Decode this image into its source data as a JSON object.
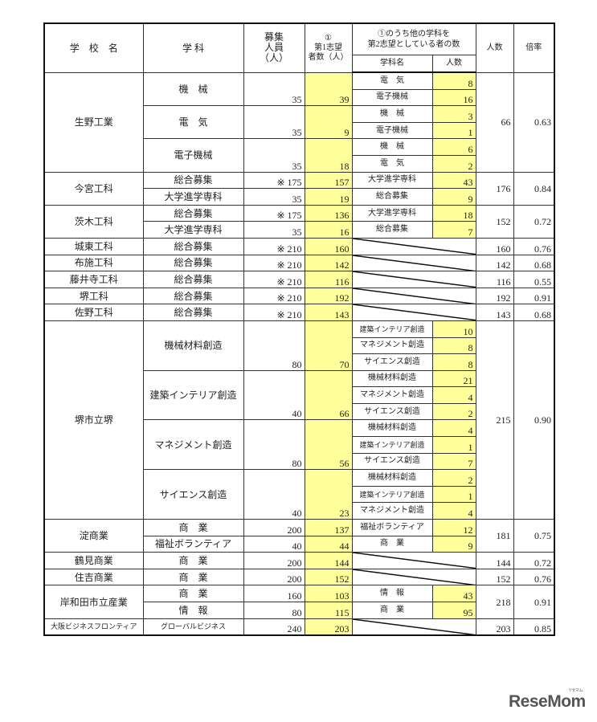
{
  "header": {
    "school": "学　校　名",
    "dept": "学 科",
    "quota": "募集\n人員\n（人）",
    "first_choice": "①\n第1志望\n者数（人）",
    "second_choice": "①のうち他の学科を\n第2志望としている者の数",
    "second_dept": "学科名",
    "second_count": "人数",
    "total": "人数",
    "ratio": "倍率"
  },
  "colors": {
    "highlight": "#ffff9c",
    "border": "#333333"
  },
  "schools": [
    {
      "name": "生野工業",
      "total": "66",
      "ratio": "0.63",
      "depts": [
        {
          "name": "機　械",
          "quota": "35",
          "first": "39",
          "seconds": [
            {
              "name": "電　気",
              "count": "8"
            },
            {
              "name": "電子機械",
              "count": "16"
            }
          ]
        },
        {
          "name": "電　気",
          "quota": "35",
          "first": "9",
          "seconds": [
            {
              "name": "機　械",
              "count": "3"
            },
            {
              "name": "電子機械",
              "count": "1"
            }
          ]
        },
        {
          "name": "電子機械",
          "quota": "35",
          "first": "18",
          "seconds": [
            {
              "name": "機　械",
              "count": "6"
            },
            {
              "name": "電　気",
              "count": "2"
            }
          ]
        }
      ]
    },
    {
      "name": "今宮工科",
      "total": "176",
      "ratio": "0.84",
      "depts": [
        {
          "name": "総合募集",
          "quota": "※ 175",
          "first": "157",
          "seconds": [
            {
              "name": "大学進学専科",
              "count": "43"
            }
          ]
        },
        {
          "name": "大学進学専科",
          "quota": "35",
          "first": "19",
          "seconds": [
            {
              "name": "総合募集",
              "count": "9"
            }
          ]
        }
      ]
    },
    {
      "name": "茨木工科",
      "total": "152",
      "ratio": "0.72",
      "depts": [
        {
          "name": "総合募集",
          "quota": "※ 175",
          "first": "136",
          "seconds": [
            {
              "name": "大学進学専科",
              "count": "18"
            }
          ]
        },
        {
          "name": "大学進学専科",
          "quota": "35",
          "first": "16",
          "seconds": [
            {
              "name": "総合募集",
              "count": "7"
            }
          ]
        }
      ]
    },
    {
      "name": "城東工科",
      "total": "160",
      "ratio": "0.76",
      "depts": [
        {
          "name": "総合募集",
          "quota": "※ 210",
          "first": "160",
          "seconds": []
        }
      ]
    },
    {
      "name": "布施工科",
      "total": "142",
      "ratio": "0.68",
      "depts": [
        {
          "name": "総合募集",
          "quota": "※ 210",
          "first": "142",
          "seconds": []
        }
      ]
    },
    {
      "name": "藤井寺工科",
      "total": "116",
      "ratio": "0.55",
      "depts": [
        {
          "name": "総合募集",
          "quota": "※ 210",
          "first": "116",
          "seconds": []
        }
      ]
    },
    {
      "name": "堺工科",
      "total": "192",
      "ratio": "0.91",
      "depts": [
        {
          "name": "総合募集",
          "quota": "※ 210",
          "first": "192",
          "seconds": []
        }
      ]
    },
    {
      "name": "佐野工科",
      "total": "143",
      "ratio": "0.68",
      "depts": [
        {
          "name": "総合募集",
          "quota": "※ 210",
          "first": "143",
          "seconds": []
        }
      ]
    },
    {
      "name": "堺市立堺",
      "total": "215",
      "ratio": "0.90",
      "depts": [
        {
          "name": "機械材料創造",
          "quota": "80",
          "first": "70",
          "seconds": [
            {
              "name": "建築インテリア創造",
              "count": "10"
            },
            {
              "name": "マネジメント創造",
              "count": "8"
            },
            {
              "name": "サイエンス創造",
              "count": "8"
            }
          ]
        },
        {
          "name": "建築インテリア創造",
          "quota": "40",
          "first": "66",
          "seconds": [
            {
              "name": "機械材料創造",
              "count": "21"
            },
            {
              "name": "マネジメント創造",
              "count": "4"
            },
            {
              "name": "サイエンス創造",
              "count": "2"
            }
          ]
        },
        {
          "name": "マネジメント創造",
          "quota": "80",
          "first": "56",
          "seconds": [
            {
              "name": "機械材料創造",
              "count": "4"
            },
            {
              "name": "建築インテリア創造",
              "count": "1"
            },
            {
              "name": "サイエンス創造",
              "count": "7"
            }
          ]
        },
        {
          "name": "サイエンス創造",
          "quota": "40",
          "first": "23",
          "seconds": [
            {
              "name": "機械材料創造",
              "count": "2"
            },
            {
              "name": "建築インテリア創造",
              "count": "1"
            },
            {
              "name": "マネジメント創造",
              "count": "4"
            }
          ]
        }
      ]
    },
    {
      "name": "淀商業",
      "total": "181",
      "ratio": "0.75",
      "depts": [
        {
          "name": "商　業",
          "quota": "200",
          "first": "137",
          "seconds": [
            {
              "name": "福祉ボランティア",
              "count": "12"
            }
          ]
        },
        {
          "name": "福祉ボランティア",
          "quota": "40",
          "first": "44",
          "seconds": [
            {
              "name": "商　業",
              "count": "9"
            }
          ]
        }
      ]
    },
    {
      "name": "鶴見商業",
      "total": "144",
      "ratio": "0.72",
      "depts": [
        {
          "name": "商　業",
          "quota": "200",
          "first": "144",
          "seconds": []
        }
      ]
    },
    {
      "name": "住吉商業",
      "total": "152",
      "ratio": "0.76",
      "depts": [
        {
          "name": "商　業",
          "quota": "200",
          "first": "152",
          "seconds": []
        }
      ]
    },
    {
      "name": "岸和田市立産業",
      "total": "218",
      "ratio": "0.91",
      "depts": [
        {
          "name": "商　業",
          "quota": "160",
          "first": "103",
          "seconds": [
            {
              "name": "情　報",
              "count": "43"
            }
          ]
        },
        {
          "name": "情　報",
          "quota": "80",
          "first": "115",
          "seconds": [
            {
              "name": "商　業",
              "count": "95"
            }
          ]
        }
      ]
    },
    {
      "name": "大阪ビジネスフロンティア",
      "total": "203",
      "ratio": "0.85",
      "small": true,
      "depts": [
        {
          "name": "グローバルビジネス",
          "quota": "240",
          "first": "203",
          "seconds": []
        }
      ]
    }
  ],
  "logo": {
    "text": "ReseMom",
    "ruby": "リセマム"
  }
}
